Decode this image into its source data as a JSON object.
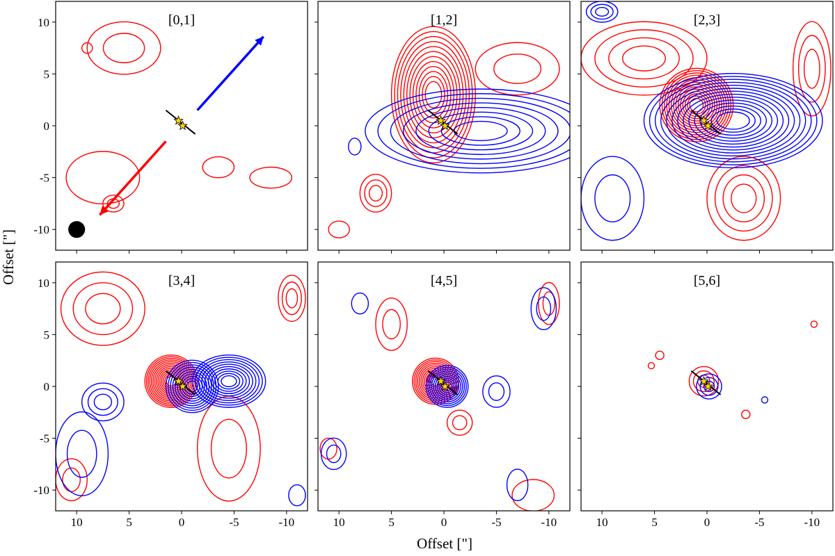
{
  "figure": {
    "xlabel": "Offset [\"]",
    "ylabel": "Offset [\"]"
  },
  "chart_data": [
    {
      "type": "contour",
      "title": "[0,1]",
      "xlim": [
        12,
        -12
      ],
      "ylim": [
        -12,
        12
      ],
      "xticks": [
        10,
        5,
        0,
        -5,
        -10
      ],
      "yticks": [
        10,
        5,
        0,
        -5,
        -10
      ],
      "x_tick_labels_visible": false,
      "y_tick_labels_visible": true,
      "red_contours": [
        {
          "x": 5.5,
          "y": 7.5,
          "rx": 3.5,
          "ry": 2.5,
          "levels": 2
        },
        {
          "x": 7.5,
          "y": -5.0,
          "rx": 3.5,
          "ry": 2.5,
          "levels": 1
        },
        {
          "x": 6.5,
          "y": -7.5,
          "rx": 1.0,
          "ry": 0.8,
          "levels": 2
        },
        {
          "x": -3.5,
          "y": -4.0,
          "rx": 1.5,
          "ry": 1.0,
          "levels": 1
        },
        {
          "x": -8.5,
          "y": -5.0,
          "rx": 2.0,
          "ry": 1.0,
          "levels": 1
        },
        {
          "x": 9.0,
          "y": 7.5,
          "rx": 0.5,
          "ry": 0.5,
          "levels": 1
        }
      ],
      "blue_contours": [],
      "arrows": [
        {
          "color": "#0000ff",
          "from": [
            -1.5,
            1.5
          ],
          "to": [
            -7.8,
            8.6
          ]
        },
        {
          "color": "#ff0000",
          "from": [
            1.5,
            -1.5
          ],
          "to": [
            7.8,
            -8.6
          ]
        }
      ],
      "beam": {
        "x": 10,
        "y": -10,
        "r": 0.8
      },
      "stars": [
        [
          0.3,
          0.5
        ],
        [
          -0.1,
          0.0
        ]
      ],
      "disk_line": {
        "from": [
          1.5,
          1.5
        ],
        "to": [
          -1.3,
          -0.8
        ]
      }
    },
    {
      "type": "contour",
      "title": "[1,2]",
      "xlim": [
        12,
        -12
      ],
      "ylim": [
        -12,
        12
      ],
      "xticks": [
        10,
        5,
        0,
        -5,
        -10
      ],
      "yticks": [
        10,
        5,
        0,
        -5,
        -10
      ],
      "x_tick_labels_visible": false,
      "y_tick_labels_visible": false,
      "red_contours": [
        {
          "x": 1.0,
          "y": 3.0,
          "rx": 4.0,
          "ry": 6.5,
          "levels": 12
        },
        {
          "x": 6.5,
          "y": -6.5,
          "rx": 1.5,
          "ry": 1.8,
          "levels": 3
        },
        {
          "x": -7.0,
          "y": 5.5,
          "rx": 4.0,
          "ry": 2.5,
          "levels": 2
        },
        {
          "x": 10.0,
          "y": -10.0,
          "rx": 1.0,
          "ry": 0.8,
          "levels": 1
        }
      ],
      "blue_contours": [
        {
          "x": -3.5,
          "y": -0.5,
          "rx": 11.0,
          "ry": 4.0,
          "levels": 8
        },
        {
          "x": 8.5,
          "y": -2.0,
          "rx": 0.6,
          "ry": 0.8,
          "levels": 1
        }
      ],
      "arrows": [],
      "beam": null,
      "stars": [
        [
          0.3,
          0.5
        ],
        [
          -0.1,
          0.0
        ]
      ],
      "disk_line": {
        "from": [
          1.5,
          1.5
        ],
        "to": [
          -1.3,
          -0.8
        ]
      }
    },
    {
      "type": "contour",
      "title": "[2,3]",
      "xlim": [
        12,
        -12
      ],
      "ylim": [
        -12,
        12
      ],
      "xticks": [
        10,
        5,
        0,
        -5,
        -10
      ],
      "yticks": [
        10,
        5,
        0,
        -5,
        -10
      ],
      "x_tick_labels_visible": false,
      "y_tick_labels_visible": false,
      "red_contours": [
        {
          "x": 1.0,
          "y": 2.0,
          "rx": 3.5,
          "ry": 3.5,
          "levels": 14
        },
        {
          "x": 6.0,
          "y": 6.5,
          "rx": 6.0,
          "ry": 3.5,
          "levels": 4
        },
        {
          "x": -3.5,
          "y": -7.0,
          "rx": 3.5,
          "ry": 4.0,
          "levels": 4
        },
        {
          "x": -10.0,
          "y": 5.5,
          "rx": 1.8,
          "ry": 4.5,
          "levels": 3
        }
      ],
      "blue_contours": [
        {
          "x": -2.5,
          "y": 0.5,
          "rx": 8.5,
          "ry": 4.5,
          "levels": 14
        },
        {
          "x": 9.0,
          "y": -7.0,
          "rx": 3.0,
          "ry": 4.0,
          "levels": 2
        },
        {
          "x": 10.0,
          "y": 11.0,
          "rx": 1.5,
          "ry": 1.0,
          "levels": 3
        }
      ],
      "arrows": [],
      "beam": null,
      "stars": [
        [
          0.3,
          0.5
        ],
        [
          -0.1,
          0.0
        ]
      ],
      "disk_line": {
        "from": [
          1.5,
          1.5
        ],
        "to": [
          -1.3,
          -0.8
        ]
      }
    },
    {
      "type": "contour",
      "title": "[3,4]",
      "xlim": [
        12,
        -12
      ],
      "ylim": [
        -12,
        12
      ],
      "xticks": [
        10,
        5,
        0,
        -5,
        -10
      ],
      "yticks": [
        10,
        5,
        0,
        -5,
        -10
      ],
      "x_tick_labels_visible": true,
      "y_tick_labels_visible": true,
      "red_contours": [
        {
          "x": 1.0,
          "y": 0.5,
          "rx": 2.5,
          "ry": 2.5,
          "levels": 14
        },
        {
          "x": 7.5,
          "y": 7.5,
          "rx": 4.0,
          "ry": 3.5,
          "levels": 3
        },
        {
          "x": -4.5,
          "y": -6.0,
          "rx": 3.0,
          "ry": 5.0,
          "levels": 2
        },
        {
          "x": -10.5,
          "y": 8.5,
          "rx": 1.3,
          "ry": 2.2,
          "levels": 3
        },
        {
          "x": 10.5,
          "y": -9.0,
          "rx": 1.5,
          "ry": 2.0,
          "levels": 2
        }
      ],
      "blue_contours": [
        {
          "x": -4.5,
          "y": 0.5,
          "rx": 3.5,
          "ry": 2.5,
          "levels": 10
        },
        {
          "x": -1.0,
          "y": 0.0,
          "rx": 2.5,
          "ry": 2.5,
          "levels": 10
        },
        {
          "x": 7.5,
          "y": -1.5,
          "rx": 2.0,
          "ry": 1.8,
          "levels": 3
        },
        {
          "x": 9.5,
          "y": -6.5,
          "rx": 2.5,
          "ry": 4.0,
          "levels": 2
        },
        {
          "x": -11.0,
          "y": -10.5,
          "rx": 0.8,
          "ry": 1.0,
          "levels": 1
        }
      ],
      "arrows": [],
      "beam": null,
      "stars": [
        [
          0.3,
          0.5
        ],
        [
          -0.1,
          0.0
        ]
      ],
      "disk_line": {
        "from": [
          1.5,
          1.5
        ],
        "to": [
          -1.3,
          -0.8
        ]
      }
    },
    {
      "type": "contour",
      "title": "[4,5]",
      "xlim": [
        12,
        -12
      ],
      "ylim": [
        -12,
        12
      ],
      "xticks": [
        10,
        5,
        0,
        -5,
        -10
      ],
      "yticks": [
        10,
        5,
        0,
        -5,
        -10
      ],
      "x_tick_labels_visible": true,
      "y_tick_labels_visible": false,
      "red_contours": [
        {
          "x": 0.8,
          "y": 0.5,
          "rx": 2.2,
          "ry": 2.2,
          "levels": 12
        },
        {
          "x": 5.0,
          "y": 6.0,
          "rx": 1.5,
          "ry": 2.5,
          "levels": 2
        },
        {
          "x": -10.0,
          "y": 8.0,
          "rx": 1.0,
          "ry": 2.0,
          "levels": 2
        },
        {
          "x": -1.5,
          "y": -3.5,
          "rx": 1.2,
          "ry": 1.2,
          "levels": 2
        },
        {
          "x": 11.0,
          "y": -6.0,
          "rx": 0.8,
          "ry": 1.0,
          "levels": 1
        },
        {
          "x": -8.5,
          "y": -10.5,
          "rx": 2.0,
          "ry": 1.5,
          "levels": 1
        }
      ],
      "blue_contours": [
        {
          "x": -0.3,
          "y": 0.0,
          "rx": 2.0,
          "ry": 2.0,
          "levels": 10
        },
        {
          "x": -5.0,
          "y": -0.5,
          "rx": 1.3,
          "ry": 1.5,
          "levels": 2
        },
        {
          "x": 8.0,
          "y": 8.0,
          "rx": 0.8,
          "ry": 1.0,
          "levels": 1
        },
        {
          "x": 10.5,
          "y": -6.5,
          "rx": 1.2,
          "ry": 1.5,
          "levels": 2
        },
        {
          "x": -9.5,
          "y": 7.5,
          "rx": 1.2,
          "ry": 2.0,
          "levels": 2
        },
        {
          "x": -7.0,
          "y": -9.5,
          "rx": 1.0,
          "ry": 1.5,
          "levels": 1
        }
      ],
      "arrows": [],
      "beam": null,
      "stars": [
        [
          0.3,
          0.5
        ],
        [
          -0.1,
          0.0
        ]
      ],
      "disk_line": {
        "from": [
          1.5,
          1.5
        ],
        "to": [
          -1.3,
          -0.8
        ]
      }
    },
    {
      "type": "contour",
      "title": "[5,6]",
      "xlim": [
        12,
        -12
      ],
      "ylim": [
        -12,
        12
      ],
      "xticks": [
        10,
        5,
        0,
        -5,
        -10
      ],
      "yticks": [
        10,
        5,
        0,
        -5,
        -10
      ],
      "x_tick_labels_visible": true,
      "y_tick_labels_visible": false,
      "red_contours": [
        {
          "x": 0.3,
          "y": 0.5,
          "rx": 1.4,
          "ry": 1.4,
          "levels": 3
        },
        {
          "x": 4.5,
          "y": 3.0,
          "rx": 0.4,
          "ry": 0.4,
          "levels": 1
        },
        {
          "x": 5.3,
          "y": 2.0,
          "rx": 0.3,
          "ry": 0.3,
          "levels": 1
        },
        {
          "x": -3.7,
          "y": -2.7,
          "rx": 0.4,
          "ry": 0.4,
          "levels": 1
        },
        {
          "x": -10.2,
          "y": 6.0,
          "rx": 0.3,
          "ry": 0.3,
          "levels": 1
        }
      ],
      "blue_contours": [
        {
          "x": -0.2,
          "y": 0.0,
          "rx": 1.2,
          "ry": 1.2,
          "levels": 3
        },
        {
          "x": -5.5,
          "y": -1.3,
          "rx": 0.3,
          "ry": 0.3,
          "levels": 1
        }
      ],
      "arrows": [],
      "beam": null,
      "stars": [
        [
          0.3,
          0.5
        ],
        [
          -0.1,
          0.0
        ]
      ],
      "disk_line": {
        "from": [
          1.5,
          1.5
        ],
        "to": [
          -1.3,
          -0.8
        ]
      }
    }
  ],
  "colors": {
    "red": "#ff0000",
    "blue": "#0000ff",
    "star_fill": "#ffd700",
    "axes": "#000000"
  }
}
